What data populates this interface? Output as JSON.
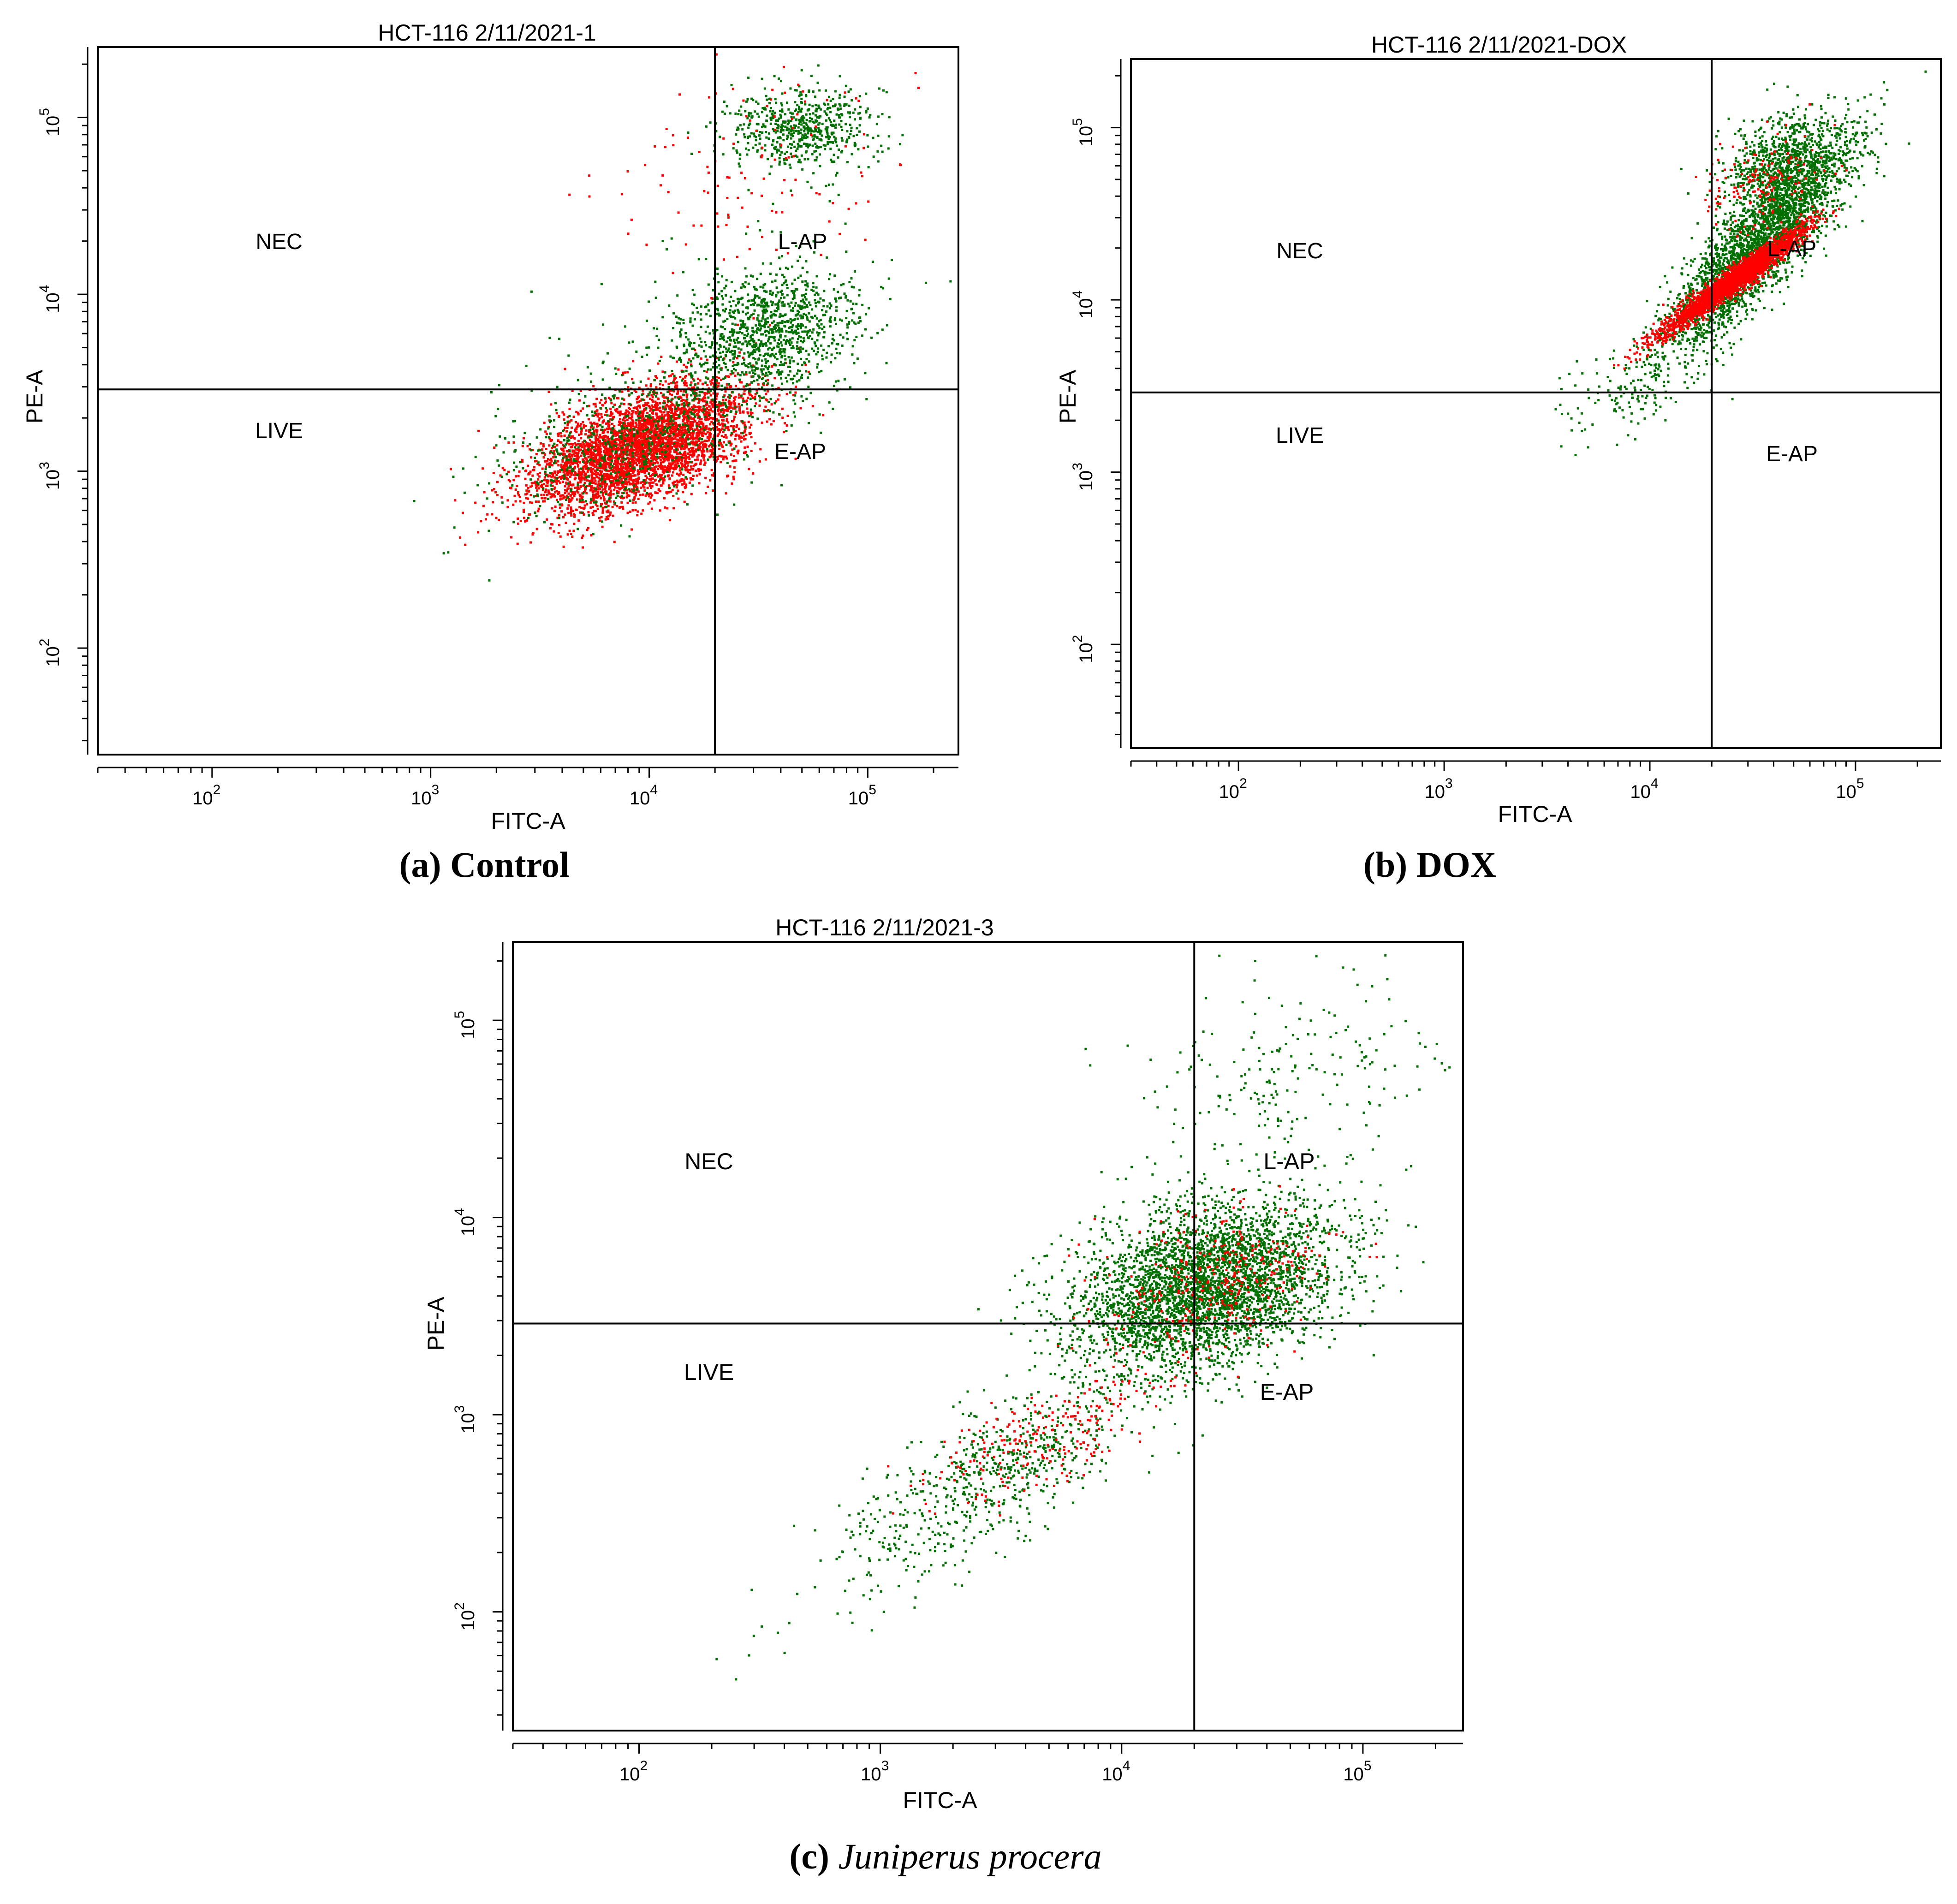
{
  "figure": {
    "captions": [
      {
        "letter": "a",
        "text": "Control",
        "italic": false
      },
      {
        "letter": "b",
        "text": "DOX",
        "italic": false
      },
      {
        "letter": "c",
        "text": "Juniperus procera",
        "italic": true
      }
    ]
  },
  "colors": {
    "red": "#ff0000",
    "green": "#007000",
    "axis": "#000000"
  },
  "chart_data": [
    {
      "type": "scatter",
      "title": "HCT-116 2/11/2021-1",
      "xlabel": "FITC-A",
      "ylabel": "PE-A",
      "xscale": "log",
      "yscale": "log",
      "xlim": [
        30,
        260000
      ],
      "ylim": [
        25,
        250000
      ],
      "x_ticks": [
        {
          "value": 100,
          "base": "10",
          "exp": "2"
        },
        {
          "value": 1000,
          "base": "10",
          "exp": "3"
        },
        {
          "value": 10000,
          "base": "10",
          "exp": "4"
        },
        {
          "value": 100000,
          "base": "10",
          "exp": "5"
        }
      ],
      "y_ticks": [
        {
          "value": 100,
          "base": "10",
          "exp": "2"
        },
        {
          "value": 1000,
          "base": "10",
          "exp": "3"
        },
        {
          "value": 10000,
          "base": "10",
          "exp": "4"
        },
        {
          "value": 100000,
          "base": "10",
          "exp": "5"
        }
      ],
      "quadrant_x": 20000,
      "quadrant_y": 2900,
      "quadrant_labels": {
        "top_left": "NEC",
        "top_right": "L-AP",
        "bottom_left": "LIVE",
        "bottom_right": "E-AP"
      },
      "clusters": [
        {
          "color": "red",
          "count": 4200,
          "center": [
            9000,
            1400
          ],
          "spread": [
            0.25,
            0.18
          ],
          "corr": 0.55
        },
        {
          "color": "green",
          "count": 500,
          "center": [
            8000,
            1500
          ],
          "spread": [
            0.3,
            0.2
          ],
          "corr": 0.5
        },
        {
          "color": "green",
          "count": 1100,
          "center": [
            35000,
            6000
          ],
          "spread": [
            0.2,
            0.18
          ],
          "corr": 0.3
        },
        {
          "color": "green",
          "count": 600,
          "center": [
            50000,
            90000
          ],
          "spread": [
            0.18,
            0.12
          ],
          "corr": 0.0
        },
        {
          "color": "red",
          "count": 120,
          "center": [
            30000,
            50000
          ],
          "spread": [
            0.35,
            0.3
          ],
          "corr": 0.3
        },
        {
          "color": "green",
          "count": 200,
          "center": [
            15000,
            4000
          ],
          "spread": [
            0.4,
            0.4
          ],
          "corr": 0.4
        }
      ]
    },
    {
      "type": "scatter",
      "title": "HCT-116 2/11/2021-DOX",
      "xlabel": "FITC-A",
      "ylabel": "PE-A",
      "xscale": "log",
      "yscale": "log",
      "xlim": [
        30,
        260000
      ],
      "ylim": [
        25,
        250000
      ],
      "x_ticks": [
        {
          "value": 100,
          "base": "10",
          "exp": "2"
        },
        {
          "value": 1000,
          "base": "10",
          "exp": "3"
        },
        {
          "value": 10000,
          "base": "10",
          "exp": "4"
        },
        {
          "value": 100000,
          "base": "10",
          "exp": "5"
        }
      ],
      "y_ticks": [
        {
          "value": 100,
          "base": "10",
          "exp": "2"
        },
        {
          "value": 1000,
          "base": "10",
          "exp": "3"
        },
        {
          "value": 10000,
          "base": "10",
          "exp": "4"
        },
        {
          "value": 100000,
          "base": "10",
          "exp": "5"
        }
      ],
      "quadrant_x": 20000,
      "quadrant_y": 2900,
      "quadrant_labels": {
        "top_left": "NEC",
        "top_right": "L-AP",
        "bottom_left": "LIVE",
        "bottom_right": "E-AP"
      },
      "clusters": [
        {
          "color": "green",
          "count": 2600,
          "center": [
            32000,
            20000
          ],
          "spread": [
            0.22,
            0.3
          ],
          "corr": 0.85
        },
        {
          "color": "green",
          "count": 900,
          "center": [
            45000,
            60000
          ],
          "spread": [
            0.15,
            0.15
          ],
          "corr": 0.3
        },
        {
          "color": "red",
          "count": 2600,
          "center": [
            25000,
            13000
          ],
          "spread": [
            0.18,
            0.16
          ],
          "corr": 0.97
        },
        {
          "color": "red",
          "count": 150,
          "center": [
            35000,
            50000
          ],
          "spread": [
            0.15,
            0.15
          ],
          "corr": 0.3
        },
        {
          "color": "green",
          "count": 120,
          "center": [
            8000,
            3000
          ],
          "spread": [
            0.2,
            0.15
          ],
          "corr": 0.5
        }
      ]
    },
    {
      "type": "scatter",
      "title": "HCT-116 2/11/2021-3",
      "xlabel": "FITC-A",
      "ylabel": "PE-A",
      "xscale": "log",
      "yscale": "log",
      "xlim": [
        30,
        260000
      ],
      "ylim": [
        25,
        250000
      ],
      "x_ticks": [
        {
          "value": 100,
          "base": "10",
          "exp": "2"
        },
        {
          "value": 1000,
          "base": "10",
          "exp": "3"
        },
        {
          "value": 10000,
          "base": "10",
          "exp": "4"
        },
        {
          "value": 100000,
          "base": "10",
          "exp": "5"
        }
      ],
      "y_ticks": [
        {
          "value": 100,
          "base": "10",
          "exp": "2"
        },
        {
          "value": 1000,
          "base": "10",
          "exp": "3"
        },
        {
          "value": 10000,
          "base": "10",
          "exp": "4"
        },
        {
          "value": 100000,
          "base": "10",
          "exp": "5"
        }
      ],
      "quadrant_x": 20000,
      "quadrant_y": 2900,
      "quadrant_labels": {
        "top_left": "NEC",
        "top_right": "L-AP",
        "bottom_left": "LIVE",
        "bottom_right": "E-AP"
      },
      "clusters": [
        {
          "color": "green",
          "count": 3800,
          "center": [
            22000,
            4500
          ],
          "spread": [
            0.28,
            0.22
          ],
          "corr": 0.35
        },
        {
          "color": "green",
          "count": 700,
          "center": [
            3000,
            500
          ],
          "spread": [
            0.35,
            0.3
          ],
          "corr": 0.8
        },
        {
          "color": "red",
          "count": 320,
          "center": [
            25000,
            5000
          ],
          "spread": [
            0.22,
            0.18
          ],
          "corr": 0.3
        },
        {
          "color": "red",
          "count": 240,
          "center": [
            5000,
            800
          ],
          "spread": [
            0.25,
            0.18
          ],
          "corr": 0.7
        },
        {
          "color": "green",
          "count": 200,
          "center": [
            50000,
            50000
          ],
          "spread": [
            0.3,
            0.25
          ],
          "corr": 0.3
        }
      ]
    }
  ]
}
